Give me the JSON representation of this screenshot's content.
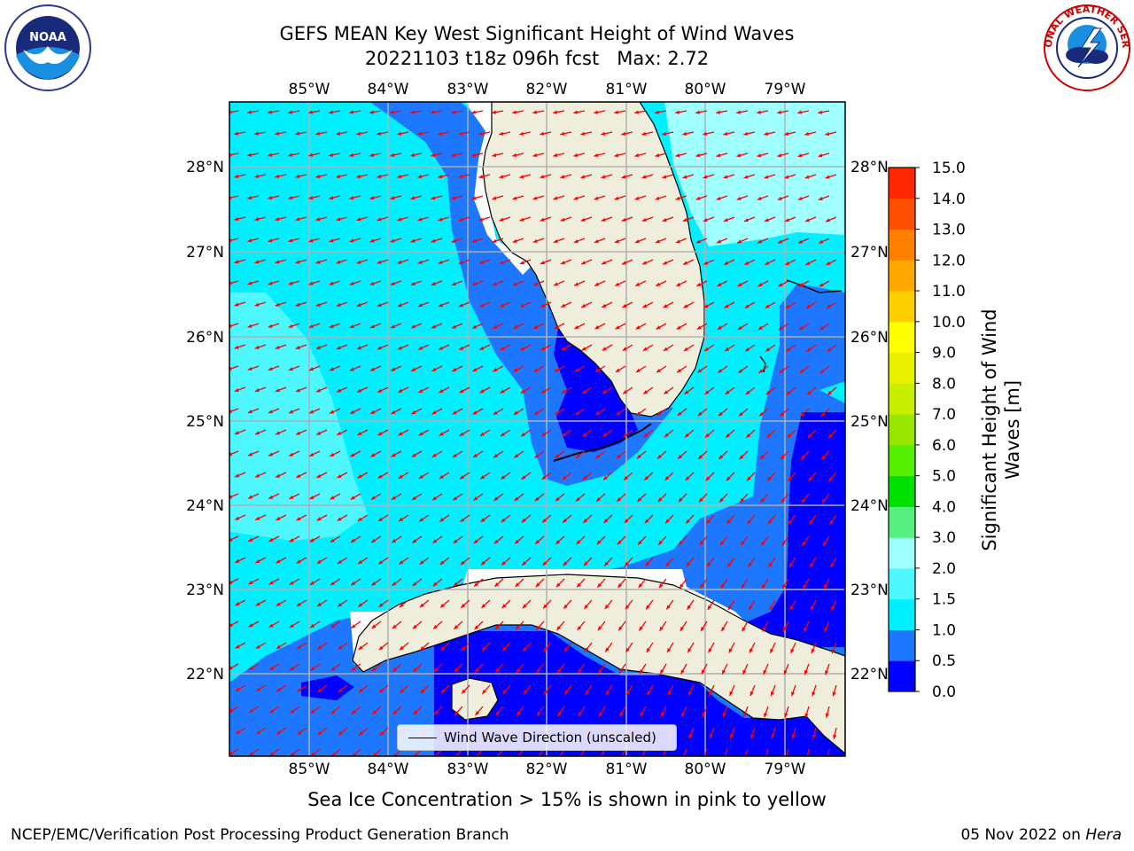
{
  "header": {
    "title_line1": "GEFS MEAN Key West Significant Height of Wind Waves",
    "title_line2": "20221103 t18z 096h fcst   Max: 2.72"
  },
  "logos": {
    "left": "NOAA logo",
    "right": "National Weather Service logo",
    "nws_text": "NATIONAL WEATHER SERVICE"
  },
  "map": {
    "lon_labels": [
      "85°W",
      "84°W",
      "83°W",
      "82°W",
      "81°W",
      "80°W",
      "79°W"
    ],
    "lat_labels": [
      "28°N",
      "27°N",
      "26°N",
      "25°N",
      "24°N",
      "23°N",
      "22°N"
    ],
    "lon_range": [
      -86.0,
      -78.25
    ],
    "lat_range": [
      21.1,
      28.75
    ],
    "gridlines": true,
    "legend": {
      "label": "Wind Wave Direction (unscaled)",
      "placement": "lower-center"
    },
    "arrow_color": "#ff0000",
    "land_color": "#efeedd"
  },
  "colorbar": {
    "label_line1": "Significant Height of Wind",
    "label_line2": "Waves [m]",
    "ticks": [
      "0.0",
      "0.5",
      "1.0",
      "1.5",
      "2.0",
      "3.0",
      "4.0",
      "5.0",
      "6.0",
      "7.0",
      "8.0",
      "9.0",
      "10.0",
      "11.0",
      "12.0",
      "13.0",
      "14.0",
      "15.0"
    ],
    "colors": [
      "#0000ff",
      "#1e78ff",
      "#00f0ff",
      "#4ff8ff",
      "#a0ffff",
      "#55f080",
      "#00e000",
      "#55ee00",
      "#98e600",
      "#c8ee00",
      "#e8f000",
      "#ffff00",
      "#ffd000",
      "#ffa600",
      "#ff8000",
      "#ff5000",
      "#ff2800",
      "#ff0000"
    ]
  },
  "note": "Sea Ice Concentration > 15% is shown in pink to yellow",
  "footer": {
    "left": "NCEP/EMC/Verification Post Processing Product Generation Branch",
    "right_date": "05 Nov 2022 on ",
    "right_host": "Hera"
  }
}
